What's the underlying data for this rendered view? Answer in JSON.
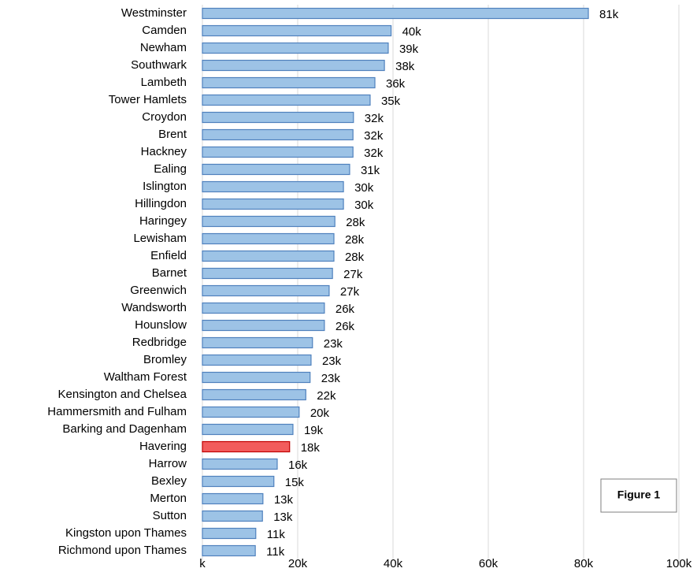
{
  "chart_data": {
    "type": "barh",
    "categories": [
      "Westminster",
      "Camden",
      "Newham",
      "Southwark",
      "Lambeth",
      "Tower Hamlets",
      "Croydon",
      "Brent",
      "Hackney",
      "Ealing",
      "Islington",
      "Hillingdon",
      "Haringey",
      "Lewisham",
      "Enfield",
      "Barnet",
      "Greenwich",
      "Wandsworth",
      "Hounslow",
      "Redbridge",
      "Bromley",
      "Waltham Forest",
      "Kensington and Chelsea",
      "Hammersmith and Fulham",
      "Barking and Dagenham",
      "Havering",
      "Harrow",
      "Bexley",
      "Merton",
      "Sutton",
      "Kingston upon Thames",
      "Richmond upon Thames"
    ],
    "values": [
      81000,
      39600,
      39000,
      38200,
      36200,
      35200,
      31700,
      31600,
      31600,
      30900,
      29600,
      29600,
      27800,
      27600,
      27600,
      27300,
      26600,
      25600,
      25600,
      23100,
      22800,
      22600,
      21700,
      20300,
      19000,
      18300,
      15700,
      15000,
      12700,
      12600,
      11200,
      11100
    ],
    "value_labels": [
      "81k",
      "40k",
      "39k",
      "38k",
      "36k",
      "35k",
      "32k",
      "32k",
      "32k",
      "31k",
      "30k",
      "30k",
      "28k",
      "28k",
      "28k",
      "27k",
      "27k",
      "26k",
      "26k",
      "23k",
      "23k",
      "23k",
      "22k",
      "20k",
      "19k",
      "18k",
      "16k",
      "15k",
      "13k",
      "13k",
      "11k",
      "11k"
    ],
    "colors": [
      "#9dc3e6",
      "#9dc3e6",
      "#9dc3e6",
      "#9dc3e6",
      "#9dc3e6",
      "#9dc3e6",
      "#9dc3e6",
      "#9dc3e6",
      "#9dc3e6",
      "#9dc3e6",
      "#9dc3e6",
      "#9dc3e6",
      "#9dc3e6",
      "#9dc3e6",
      "#9dc3e6",
      "#9dc3e6",
      "#9dc3e6",
      "#9dc3e6",
      "#9dc3e6",
      "#9dc3e6",
      "#9dc3e6",
      "#9dc3e6",
      "#9dc3e6",
      "#9dc3e6",
      "#9dc3e6",
      "#f25c5c",
      "#9dc3e6",
      "#9dc3e6",
      "#9dc3e6",
      "#9dc3e6",
      "#9dc3e6",
      "#9dc3e6"
    ],
    "xlim": [
      0,
      100000
    ],
    "xticks": [
      {
        "value": 0,
        "label": "k"
      },
      {
        "value": 20000,
        "label": "20k"
      },
      {
        "value": 40000,
        "label": "40k"
      },
      {
        "value": 60000,
        "label": "60k"
      },
      {
        "value": 80000,
        "label": "80k"
      },
      {
        "value": 100000,
        "label": "100k"
      }
    ],
    "grid": true,
    "annotation": "Figure 1"
  }
}
